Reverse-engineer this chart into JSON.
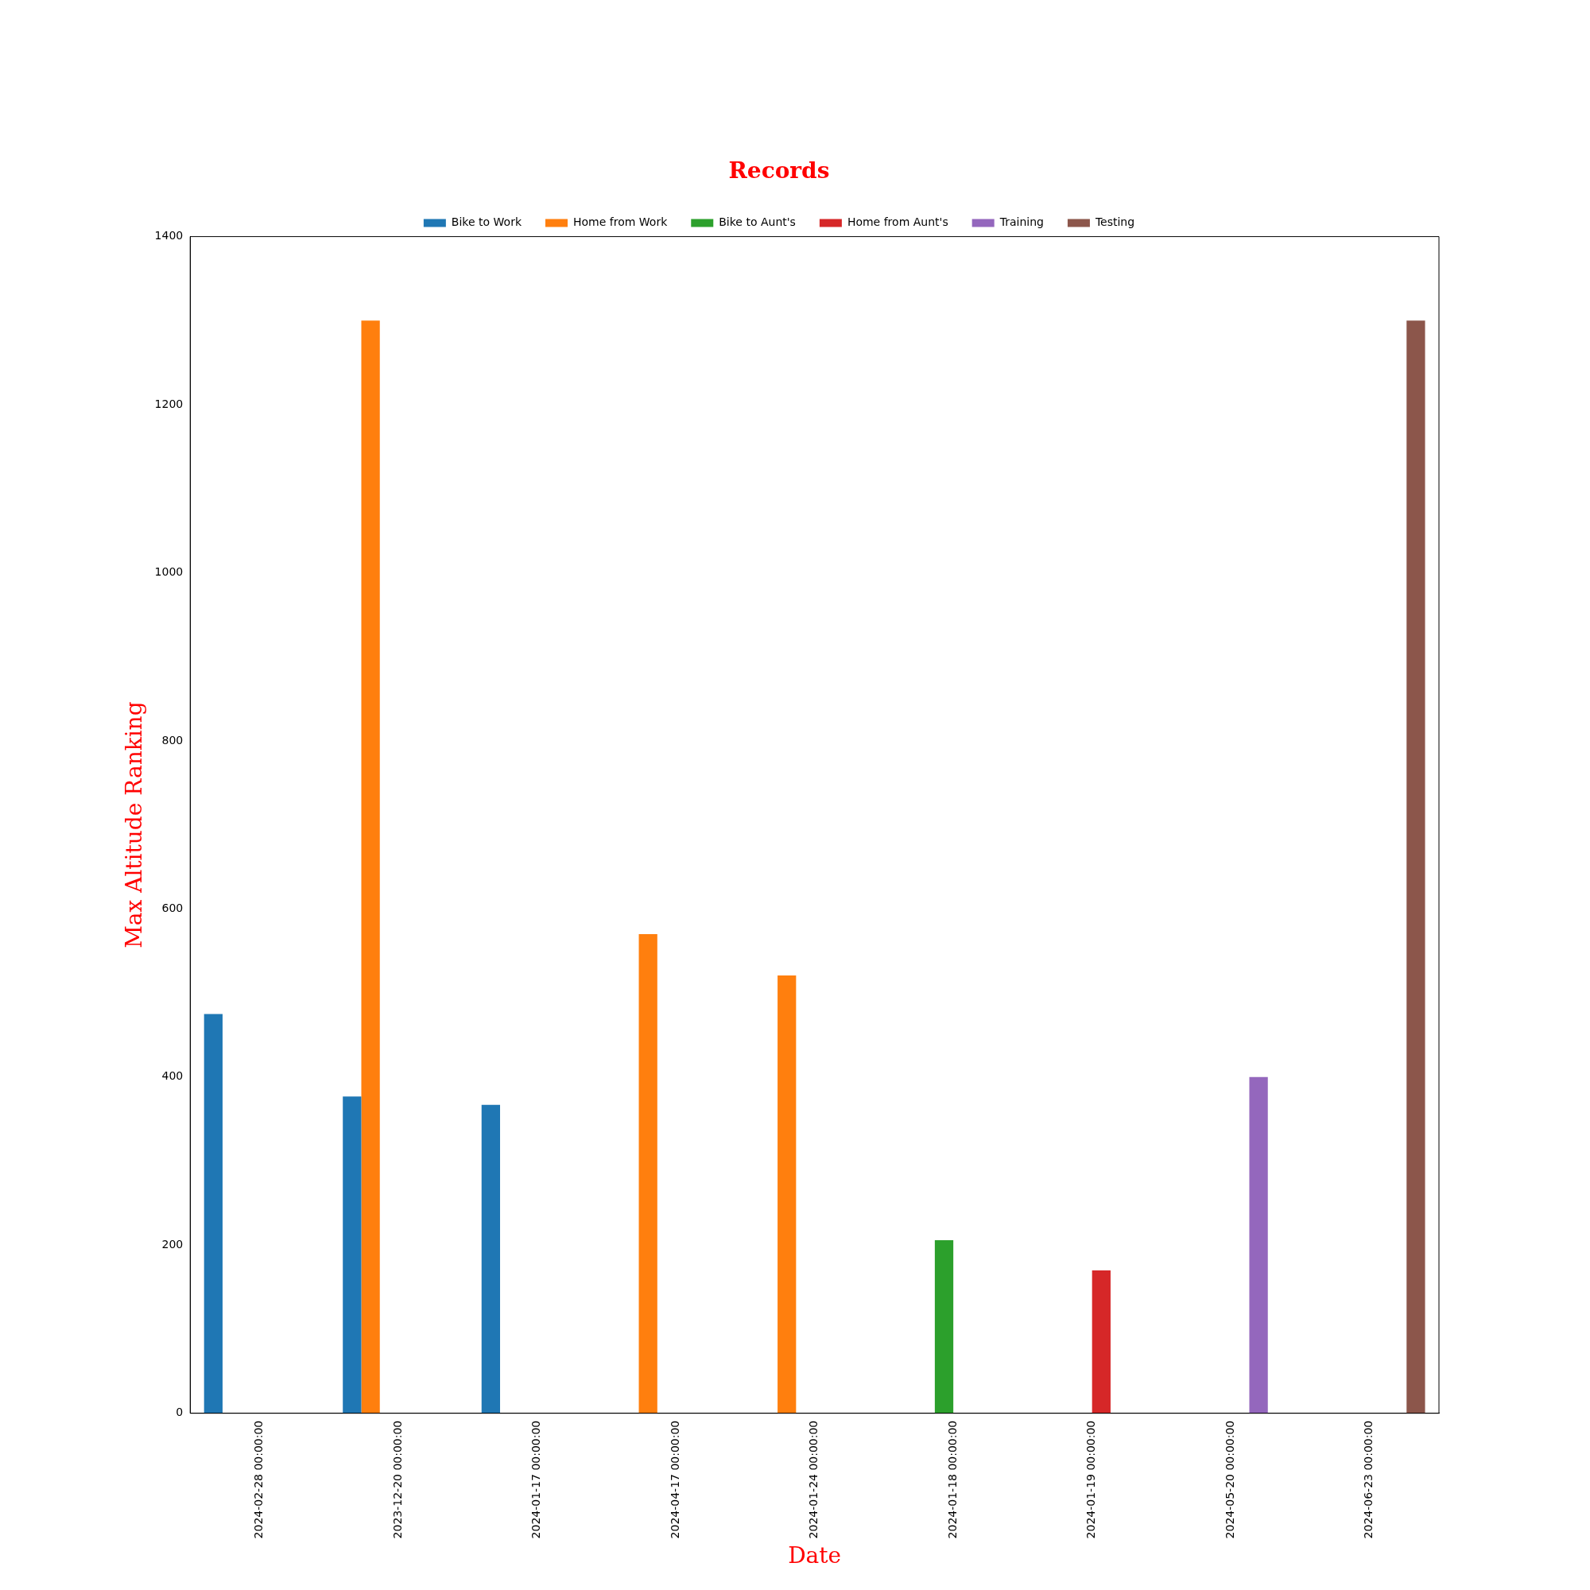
{
  "chart_data": {
    "type": "bar",
    "title": "Records",
    "xlabel": "Date",
    "ylabel": "Max Altitude Ranking",
    "categories": [
      "2024-02-28 00:00:00",
      "2023-12-20 00:00:00",
      "2024-01-17 00:00:00",
      "2024-04-17 00:00:00",
      "2024-01-24 00:00:00",
      "2024-01-18 00:00:00",
      "2024-01-19 00:00:00",
      "2024-05-20 00:00:00",
      "2024-06-23 00:00:00"
    ],
    "series": [
      {
        "name": "Bike to Work",
        "color": "#1f77b4",
        "values": [
          475,
          377,
          367,
          0,
          0,
          0,
          0,
          0,
          0
        ]
      },
      {
        "name": "Home from Work",
        "color": "#ff7f0e",
        "values": [
          0,
          1300,
          0,
          570,
          521,
          0,
          0,
          0,
          0
        ]
      },
      {
        "name": "Bike to Aunt's",
        "color": "#2ca02c",
        "values": [
          0,
          0,
          0,
          0,
          0,
          206,
          0,
          0,
          0
        ]
      },
      {
        "name": "Home from Aunt's",
        "color": "#d62728",
        "values": [
          0,
          0,
          0,
          0,
          0,
          0,
          170,
          0,
          0
        ]
      },
      {
        "name": "Training",
        "color": "#9467bd",
        "values": [
          0,
          0,
          0,
          0,
          0,
          0,
          0,
          400,
          0
        ]
      },
      {
        "name": "Testing",
        "color": "#8c564b",
        "values": [
          0,
          0,
          0,
          0,
          0,
          0,
          0,
          0,
          1300
        ]
      }
    ],
    "ylim": [
      0,
      1400
    ],
    "yticks": [
      0,
      200,
      400,
      600,
      800,
      1000,
      1200,
      1400
    ],
    "grid": false,
    "legend": "top"
  }
}
